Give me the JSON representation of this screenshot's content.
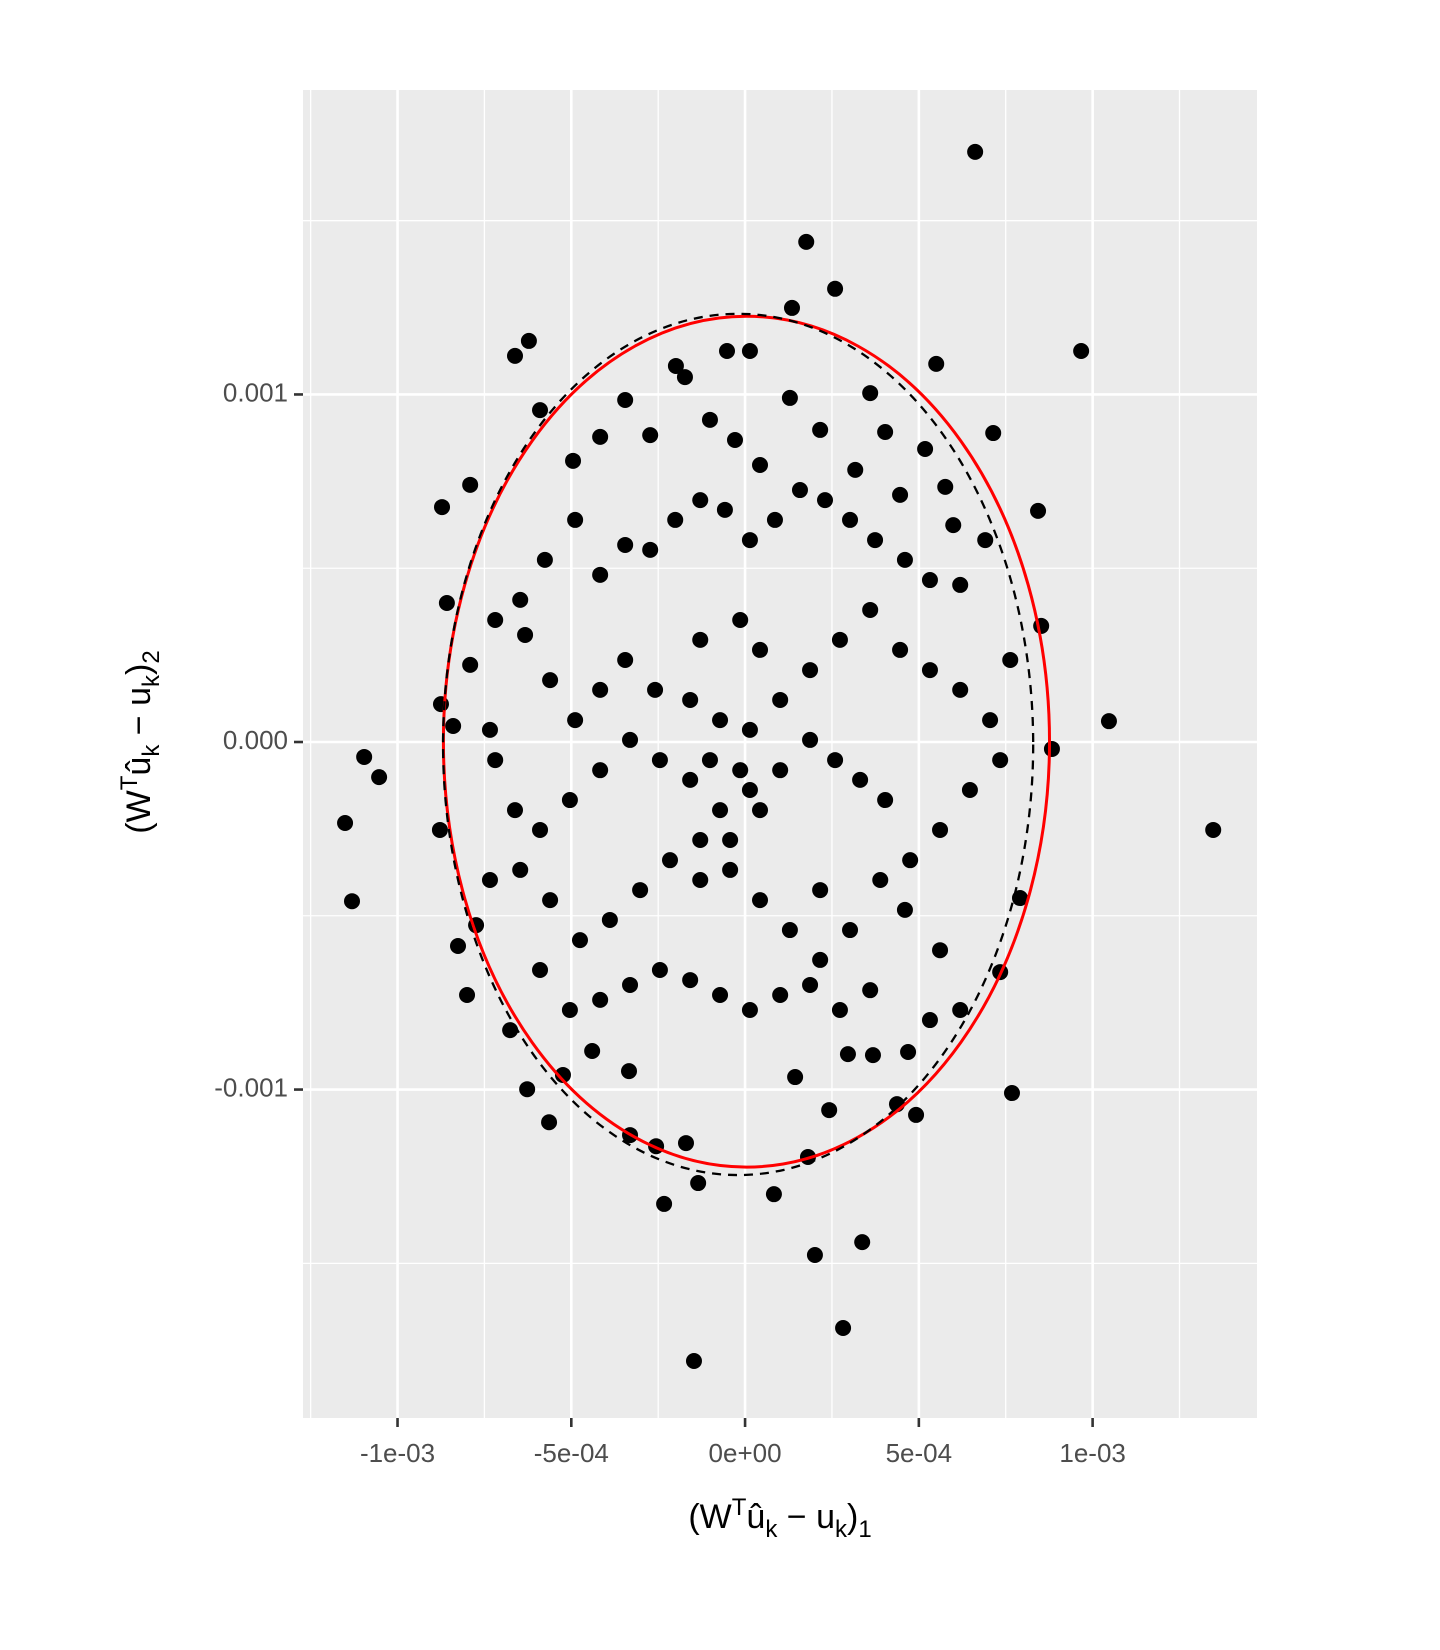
{
  "chart_data": {
    "type": "scatter",
    "x_label": [
      {
        "text": "(W",
        "pos": "base"
      },
      {
        "text": "T",
        "pos": "sup"
      },
      {
        "text": "û",
        "pos": "base"
      },
      {
        "text": "k",
        "pos": "sub"
      },
      {
        "text": " − u",
        "pos": "base"
      },
      {
        "text": "k",
        "pos": "sub"
      },
      {
        "text": ")",
        "pos": "base"
      },
      {
        "text": "1",
        "pos": "sub"
      }
    ],
    "y_label": [
      {
        "text": "(W",
        "pos": "base"
      },
      {
        "text": "T",
        "pos": "sup"
      },
      {
        "text": "û",
        "pos": "base"
      },
      {
        "text": "k",
        "pos": "sub"
      },
      {
        "text": " − u",
        "pos": "base"
      },
      {
        "text": "k",
        "pos": "sub"
      },
      {
        "text": ")",
        "pos": "base"
      },
      {
        "text": "2",
        "pos": "sub"
      }
    ],
    "xlim": [
      -0.001272,
      0.001473
    ],
    "ylim": [
      -0.001945,
      0.001876
    ],
    "xticks": [
      {
        "value": -0.001,
        "label": "-1e-03"
      },
      {
        "value": -0.0005,
        "label": "-5e-04"
      },
      {
        "value": 0,
        "label": "0e+00"
      },
      {
        "value": 0.0005,
        "label": "5e-04"
      },
      {
        "value": 0.001,
        "label": "1e-03"
      }
    ],
    "yticks": [
      {
        "value": -0.001,
        "label": "-0.001"
      },
      {
        "value": 0,
        "label": "0.000"
      },
      0.001
    ],
    "xminorticks": [
      -0.00125,
      -0.00075,
      -0.00025,
      0.00025,
      0.00075,
      0.00125
    ],
    "yminorticks": [
      -0.0015,
      -0.0005,
      0.0005,
      0.0015
    ],
    "grid": true,
    "color": "#000000",
    "ellipses": [
      {
        "center": [
          4e-06,
          1e-06
        ],
        "radii": [
          0.000872,
          0.001224
        ],
        "color": "#ff0000",
        "dashed": false
      },
      {
        "center": [
          -2e-05,
          -7e-06
        ],
        "radii": [
          0.000849,
          0.001239
        ],
        "color": "#000000",
        "dashed": true
      }
    ],
    "x": [
      0.000662,
      0.000176,
      0.000259,
      0.000135,
      -0.000622,
      -0.000662,
      0.000967,
      0.00055,
      -5.2e-05,
      1.4e-05,
      -0.000199,
      -0.000872,
      -0.000791,
      -0.000858,
      -0.001096,
      -0.001053,
      -0.001151,
      -0.001131,
      0.001347,
      0.001047,
      0.000883,
      0.000768,
      0.000492,
      0.000242,
      8.3e-05,
      -0.000135,
      -0.000233,
      0.000201,
      0.000337,
      0.000282,
      -0.000147,
      -0.000564,
      -0.000627,
      -0.000524,
      -0.0008,
      -0.000826,
      -0.000878,
      0.000791,
      0.000734,
      0.000852,
      0.000843,
      0.000714,
      0.000518,
      0.000181,
      -0.000331,
      -0.000256,
      -0.00017,
      0.000437,
      0.000144,
      0.000368,
      0.000469,
      0.000296,
      -0.00044,
      -0.000334,
      -0.000875,
      -0.00084,
      -0.000734,
      -0.000774,
      -0.000676,
      -0.00059,
      -0.000495,
      -0.000417,
      -0.000345,
      -0.000273,
      -0.000173,
      -0.000101,
      -2.9e-05,
      4.3e-05,
      0.000129,
      0.000216,
      0.000317,
      0.000403,
      0.00036,
      0.000446,
      0.000576,
      0.000599,
      0.000691,
      0.000619,
      0.000532,
      0.00046,
      0.000374,
      0.000302,
      0.00023,
      0.000158,
      8.6e-05,
      1.4e-05,
      -5.8e-05,
      -0.000129,
      -0.000201,
      -0.000273,
      -0.000345,
      -0.000417,
      -0.000489,
      -0.000576,
      -0.000647,
      -0.000719,
      -0.000791,
      -0.000633,
      -0.000561,
      -0.000489,
      -0.000417,
      -0.000345,
      -0.000259,
      -0.000158,
      -7.2e-05,
      1.4e-05,
      0.000101,
      0.000187,
      0.000273,
      0.00036,
      0.000446,
      0.000532,
      0.000619,
      0.000705,
      0.000763,
      0.000734,
      0.000647,
      0.000561,
      0.000475,
      0.000403,
      0.000331,
      0.000259,
      0.000187,
      0.000101,
      1.4e-05,
      -7.2e-05,
      -0.000158,
      -0.000245,
      -0.000331,
      -0.000417,
      -0.000504,
      -0.00059,
      -0.000662,
      -0.000719,
      -0.000734,
      -0.000647,
      -0.000561,
      -0.000475,
      -0.000389,
      -0.000302,
      -0.000216,
      -0.000129,
      -4.3e-05,
      4.3e-05,
      0.000129,
      0.000216,
      0.000302,
      0.000389,
      0.00046,
      0.000561,
      0.000619,
      0.000532,
      0.00036,
      0.000273,
      0.000187,
      0.000101,
      1.4e-05,
      -7.2e-05,
      -0.000158,
      -0.000245,
      -0.000331,
      -0.000417,
      -0.000504,
      -0.00059,
      -1.4e-05,
      -0.000129,
      4.3e-05,
      -0.000101,
      -1.4e-05,
      -4.3e-05,
      -0.000129,
      4.3e-05,
      0.000216
    ],
    "values": [
      0.001698,
      0.001439,
      0.001304,
      0.001249,
      0.001154,
      0.001111,
      0.001125,
      0.001088,
      0.001125,
      0.001125,
      0.001082,
      0.000676,
      0.00074,
      0.0004,
      -4.3e-05,
      -0.000101,
      -0.000233,
      -0.000458,
      -0.000253,
      6e-05,
      -2e-05,
      -0.00101,
      -0.001073,
      -0.001059,
      -0.001301,
      -0.001269,
      -0.001329,
      -0.001476,
      -0.001439,
      -0.001686,
      -0.001781,
      -0.001094,
      -0.000999,
      -0.000958,
      -0.000728,
      -0.000587,
      -0.000253,
      -0.000449,
      -0.000662,
      0.000334,
      0.000665,
      0.000889,
      0.000843,
      -0.001194,
      -0.001131,
      -0.001163,
      -0.001154,
      -0.001042,
      -0.000964,
      -0.000901,
      -0.000892,
      -0.000898,
      -0.000889,
      -0.000947,
      0.000109,
      4.6e-05,
      3.5e-05,
      -0.000527,
      -0.000829,
      0.000955,
      0.000809,
      0.000878,
      0.000984,
      0.000883,
      0.00105,
      0.000927,
      0.000869,
      0.000797,
      0.00099,
      0.000898,
      0.000783,
      0.000892,
      0.001004,
      0.000711,
      0.000734,
      0.000624,
      0.000581,
      0.000452,
      0.000466,
      0.000524,
      0.000581,
      0.000639,
      0.000696,
      0.000725,
      0.000639,
      0.000581,
      0.000668,
      0.000696,
      0.000639,
      0.000553,
      0.000567,
      0.000481,
      0.000639,
      0.000524,
      0.000409,
      0.000351,
      0.000222,
      0.000308,
      0.000178,
      6.3e-05,
      0.00015,
      0.000236,
      0.00015,
      0.000121,
      6.3e-05,
      3.5e-05,
      0.000121,
      0.000207,
      0.000294,
      0.00038,
      0.000265,
      0.000207,
      0.00015,
      6.3e-05,
      0.000236,
      -5.2e-05,
      -0.000138,
      -0.000253,
      -0.00034,
      -0.000167,
      -0.000109,
      -5.2e-05,
      6e-06,
      -8.1e-05,
      -0.000138,
      -0.000196,
      -0.000109,
      -5.2e-05,
      6e-06,
      -8.1e-05,
      -0.000167,
      -0.000253,
      -0.000196,
      -5.2e-05,
      -0.000397,
      -0.000368,
      -0.000455,
      -0.00057,
      -0.000512,
      -0.000426,
      -0.00034,
      -0.000282,
      -0.000368,
      -0.000455,
      -0.000541,
      -0.000627,
      -0.000541,
      -0.000397,
      -0.000483,
      -0.000599,
      -0.000771,
      -0.0008,
      -0.000714,
      -0.000771,
      -0.000699,
      -0.000728,
      -0.000771,
      -0.000728,
      -0.000685,
      -0.000656,
      -0.000699,
      -0.000742,
      -0.000771,
      -0.000656,
      0.000351,
      0.000294,
      0.000265,
      -5.2e-05,
      -8.1e-05,
      -0.000282,
      -0.000397,
      -0.000196,
      -0.000426
    ]
  }
}
